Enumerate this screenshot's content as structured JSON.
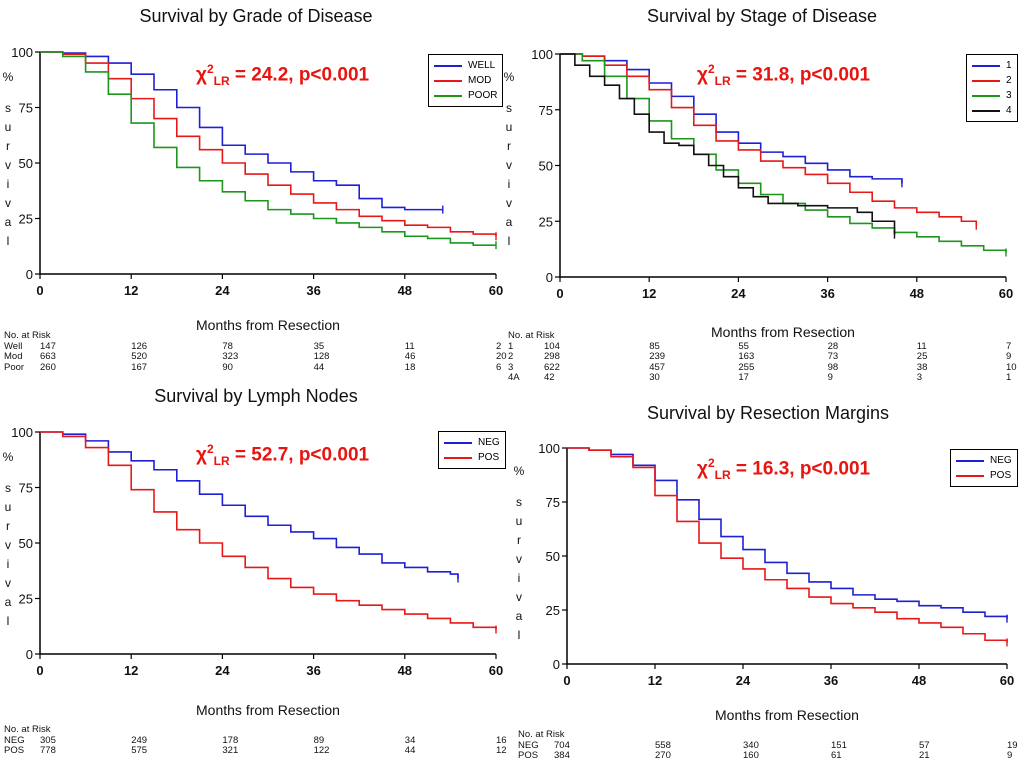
{
  "chart_data": [
    {
      "type": "line",
      "title": "Survival by Grade of Disease",
      "xlabel": "Months from Resection",
      "ylabel": "% survival",
      "xlim": [
        0,
        60
      ],
      "ylim": [
        0,
        100
      ],
      "xticks": [
        0,
        12,
        24,
        36,
        48,
        60
      ],
      "yticks": [
        0,
        25,
        50,
        75,
        100
      ],
      "legend_position": "top-right",
      "annotation": "χ2LR = 24.2, p<0.001",
      "series": [
        {
          "name": "WELL",
          "color": "#1f1fd6",
          "x": [
            0,
            3,
            6,
            9,
            12,
            15,
            18,
            21,
            24,
            27,
            30,
            33,
            36,
            39,
            42,
            45,
            48,
            53
          ],
          "y": [
            100,
            99.5,
            98,
            95,
            90,
            83,
            75,
            66,
            58,
            54,
            50,
            46,
            42,
            40,
            34,
            30,
            29,
            29
          ]
        },
        {
          "name": "MOD",
          "color": "#e81818",
          "x": [
            0,
            3,
            6,
            9,
            12,
            15,
            18,
            21,
            24,
            27,
            30,
            33,
            36,
            39,
            42,
            45,
            48,
            51,
            54,
            57,
            60
          ],
          "y": [
            100,
            99,
            95,
            88,
            79,
            70,
            62,
            56,
            50,
            45,
            40,
            36,
            32,
            29,
            26,
            24,
            22,
            21,
            19,
            18,
            17
          ]
        },
        {
          "name": "POOR",
          "color": "#1c961c",
          "x": [
            0,
            3,
            6,
            9,
            12,
            15,
            18,
            21,
            24,
            27,
            30,
            33,
            36,
            39,
            42,
            45,
            48,
            51,
            54,
            57,
            60
          ],
          "y": [
            100,
            98,
            91,
            81,
            68,
            57,
            48,
            42,
            37,
            33,
            29,
            27,
            25,
            23,
            21,
            19,
            17,
            16,
            14,
            13,
            13
          ]
        }
      ],
      "risk_table": {
        "header": "No. at Risk",
        "rows": [
          {
            "label": "Well",
            "values": [
              "147",
              "126",
              "78",
              "35",
              "11",
              "2"
            ]
          },
          {
            "label": "Mod",
            "values": [
              "663",
              "520",
              "323",
              "128",
              "46",
              "20"
            ]
          },
          {
            "label": "Poor",
            "values": [
              "260",
              "167",
              "90",
              "44",
              "18",
              "6"
            ]
          }
        ]
      }
    },
    {
      "type": "line",
      "title": "Survival by Stage of Disease",
      "xlabel": "Months from Resection",
      "ylabel": "% survival",
      "xlim": [
        0,
        60
      ],
      "ylim": [
        0,
        100
      ],
      "xticks": [
        0,
        12,
        24,
        36,
        48,
        60
      ],
      "yticks": [
        0,
        25,
        50,
        75,
        100
      ],
      "legend_position": "top-right",
      "annotation": "χ2LR = 31.8, p<0.001",
      "series": [
        {
          "name": "1",
          "color": "#1f1fd6",
          "x": [
            0,
            3,
            6,
            9,
            12,
            15,
            18,
            21,
            24,
            27,
            30,
            33,
            36,
            39,
            42,
            46
          ],
          "y": [
            100,
            99,
            97,
            93,
            87,
            81,
            73,
            65,
            60,
            56,
            54,
            51,
            48,
            45,
            44,
            42
          ]
        },
        {
          "name": "2",
          "color": "#e81818",
          "x": [
            0,
            3,
            6,
            9,
            12,
            15,
            18,
            21,
            24,
            27,
            30,
            33,
            36,
            39,
            42,
            45,
            48,
            51,
            54,
            56
          ],
          "y": [
            100,
            99,
            95,
            90,
            84,
            76,
            68,
            61,
            57,
            52,
            49,
            46,
            42,
            38,
            34,
            31,
            29,
            27,
            25,
            23
          ]
        },
        {
          "name": "3",
          "color": "#1c961c",
          "x": [
            0,
            3,
            6,
            9,
            12,
            15,
            18,
            21,
            24,
            27,
            30,
            33,
            36,
            39,
            42,
            45,
            48,
            51,
            54,
            57,
            60
          ],
          "y": [
            100,
            97,
            90,
            80,
            70,
            62,
            55,
            48,
            42,
            37,
            33,
            30,
            27,
            24,
            22,
            20,
            18,
            16,
            14,
            12,
            11
          ]
        },
        {
          "name": "4",
          "color": "#111111",
          "x": [
            0,
            2,
            4,
            6,
            8,
            10,
            12,
            14,
            16,
            18,
            20,
            22,
            24,
            26,
            28,
            30,
            32,
            34,
            36,
            40,
            42,
            45
          ],
          "y": [
            100,
            95,
            90,
            86,
            80,
            73,
            65,
            60,
            59,
            55,
            50,
            45,
            40,
            36,
            33,
            33,
            32,
            32,
            31,
            29,
            25,
            19
          ]
        }
      ],
      "risk_table": {
        "header": "No. at Risk",
        "rows": [
          {
            "label": "1",
            "values": [
              "104",
              "85",
              "55",
              "28",
              "11",
              "7"
            ]
          },
          {
            "label": "2",
            "values": [
              "298",
              "239",
              "163",
              "73",
              "25",
              "9"
            ]
          },
          {
            "label": "3",
            "values": [
              "622",
              "457",
              "255",
              "98",
              "38",
              "10"
            ]
          },
          {
            "label": "4A",
            "values": [
              "42",
              "30",
              "17",
              "9",
              "3",
              "1"
            ]
          }
        ]
      }
    },
    {
      "type": "line",
      "title": "Survival by Lymph Nodes",
      "xlabel": "Months from Resection",
      "ylabel": "% survival",
      "xlim": [
        0,
        60
      ],
      "ylim": [
        0,
        100
      ],
      "xticks": [
        0,
        12,
        24,
        36,
        48,
        60
      ],
      "yticks": [
        0,
        25,
        50,
        75,
        100
      ],
      "legend_position": "top-right",
      "annotation": "χ2LR = 52.7, p<0.001",
      "series": [
        {
          "name": "NEG",
          "color": "#1f1fd6",
          "x": [
            0,
            3,
            6,
            9,
            12,
            15,
            18,
            21,
            24,
            27,
            30,
            33,
            36,
            39,
            42,
            45,
            48,
            51,
            54,
            55
          ],
          "y": [
            100,
            99,
            96,
            91,
            87,
            83,
            78,
            72,
            67,
            62,
            58,
            55,
            52,
            48,
            45,
            41,
            39,
            37,
            36,
            34
          ]
        },
        {
          "name": "POS",
          "color": "#e81818",
          "x": [
            0,
            3,
            6,
            9,
            12,
            15,
            18,
            21,
            24,
            27,
            30,
            33,
            36,
            39,
            42,
            45,
            48,
            51,
            54,
            57,
            60
          ],
          "y": [
            100,
            98,
            93,
            85,
            74,
            64,
            56,
            50,
            44,
            39,
            34,
            30,
            27,
            24,
            22,
            20,
            18,
            16,
            14,
            12,
            11
          ]
        }
      ],
      "risk_table": {
        "header": "No. at Risk",
        "rows": [
          {
            "label": "NEG",
            "values": [
              "305",
              "249",
              "178",
              "89",
              "34",
              "16"
            ]
          },
          {
            "label": "POS",
            "values": [
              "778",
              "575",
              "321",
              "122",
              "44",
              "12"
            ]
          }
        ]
      }
    },
    {
      "type": "line",
      "title": "Survival by Resection Margins",
      "xlabel": "Months from Resection",
      "ylabel": "% survival",
      "xlim": [
        0,
        60
      ],
      "ylim": [
        0,
        100
      ],
      "xticks": [
        0,
        12,
        24,
        36,
        48,
        60
      ],
      "yticks": [
        0,
        25,
        50,
        75,
        100
      ],
      "legend_position": "top-right",
      "annotation": "χ2LR = 16.3, p<0.001",
      "series": [
        {
          "name": "NEG",
          "color": "#1f1fd6",
          "x": [
            0,
            3,
            6,
            9,
            12,
            15,
            18,
            21,
            24,
            27,
            30,
            33,
            36,
            39,
            42,
            45,
            48,
            51,
            54,
            57,
            60
          ],
          "y": [
            100,
            99,
            97,
            92,
            85,
            76,
            67,
            59,
            53,
            47,
            42,
            38,
            35,
            32,
            30,
            29,
            27,
            26,
            24,
            22,
            21
          ]
        },
        {
          "name": "POS",
          "color": "#e81818",
          "x": [
            0,
            3,
            6,
            9,
            12,
            15,
            18,
            21,
            24,
            27,
            30,
            33,
            36,
            39,
            42,
            45,
            48,
            51,
            54,
            57,
            60
          ],
          "y": [
            100,
            99,
            96,
            91,
            78,
            66,
            56,
            49,
            44,
            39,
            35,
            31,
            28,
            26,
            24,
            21,
            19,
            17,
            14,
            11,
            10
          ]
        }
      ],
      "risk_table": {
        "header": "No. at Risk",
        "rows": [
          {
            "label": "NEG",
            "values": [
              "704",
              "558",
              "340",
              "151",
              "57",
              "19"
            ]
          },
          {
            "label": "POS",
            "values": [
              "384",
              "270",
              "160",
              "61",
              "21",
              "9"
            ]
          }
        ]
      }
    }
  ]
}
